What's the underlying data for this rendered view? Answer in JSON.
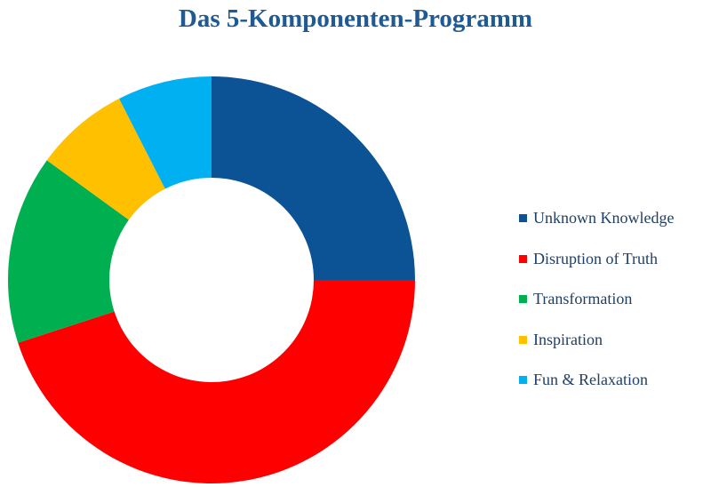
{
  "chart_data": {
    "type": "pie",
    "variant": "donut",
    "title": "Das 5-Komponenten-Programm",
    "categories": [
      "Unknown Knowledge",
      "Disruption of Truth",
      "Transformation",
      "Inspiration",
      "Fun & Relaxation"
    ],
    "values": [
      25,
      45,
      15,
      7.5,
      7.5
    ],
    "colors": [
      "#0b5394",
      "#ff0000",
      "#00b050",
      "#ffc000",
      "#00b0f0"
    ],
    "legend_position": "right"
  }
}
